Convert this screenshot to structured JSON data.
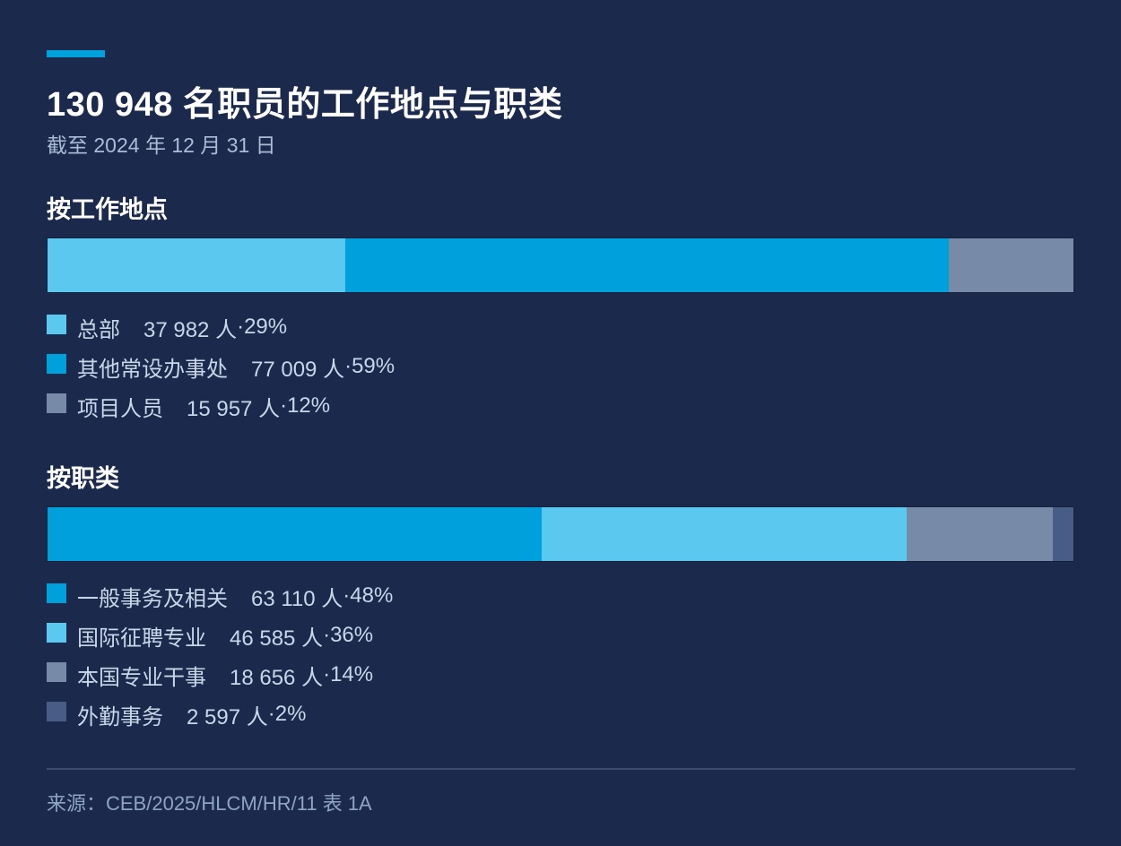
{
  "title": "130 948 名职员的工作地点与职类",
  "subtitle": "截至 2024 年 12 月 31 日",
  "source": "来源：CEB/2025/HLCM/HR/11 表 1A",
  "chart_data": [
    {
      "type": "bar",
      "title": "按工作地点",
      "stacked": true,
      "orientation": "horizontal",
      "series": [
        {
          "name": "总部",
          "value": 37982,
          "value_label": "37 982 人",
          "share": 29,
          "share_label": "29%",
          "color": "#5bc8f0"
        },
        {
          "name": "其他常设办事处",
          "value": 77009,
          "value_label": "77 009 人",
          "share": 59,
          "share_label": "59%",
          "color": "#00a0dc"
        },
        {
          "name": "项目人员",
          "value": 15957,
          "value_label": "15 957 人",
          "share": 12,
          "share_label": "12%",
          "color": "#778aa8"
        }
      ],
      "legend_position": "bottom-left",
      "grid": false
    },
    {
      "type": "bar",
      "title": "按职类",
      "stacked": true,
      "orientation": "horizontal",
      "series": [
        {
          "name": "一般事务及相关",
          "value": 63110,
          "value_label": "63 110 人",
          "share": 48,
          "share_label": "48%",
          "color": "#00a0dc"
        },
        {
          "name": "国际征聘专业",
          "value": 46585,
          "value_label": "46 585 人",
          "share": 36,
          "share_label": "36%",
          "color": "#5bc8f0"
        },
        {
          "name": "本国专业干事",
          "value": 18656,
          "value_label": "18 656 人",
          "share": 14,
          "share_label": "14%",
          "color": "#778aa8"
        },
        {
          "name": "外勤事务",
          "value": 2597,
          "value_label": "2 597 人",
          "share": 2,
          "share_label": "2%",
          "color": "#475d85"
        }
      ],
      "legend_position": "bottom-left",
      "grid": false
    }
  ]
}
